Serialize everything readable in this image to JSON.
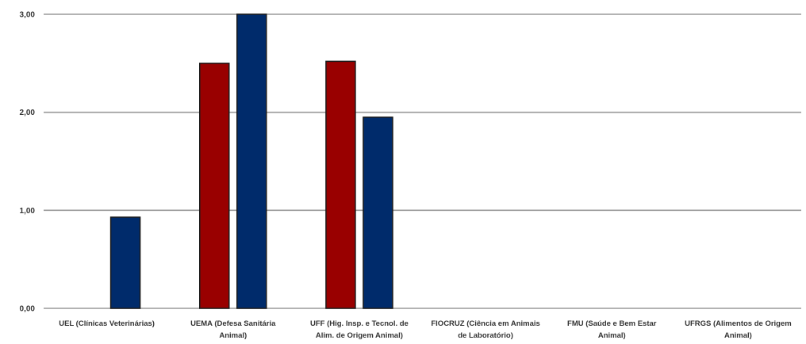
{
  "chart_data": {
    "type": "bar",
    "categories": [
      [
        "UEL (Clínicas Veterinárias)"
      ],
      [
        "UEMA (Defesa Sanitária",
        "Animal)"
      ],
      [
        "UFF (Hig. Insp. e Tecnol. de",
        "Alim. de Origem Animal)"
      ],
      [
        "FIOCRUZ (Ciência em Animais",
        "de Laboratório)"
      ],
      [
        "FMU (Saúde e Bem Estar",
        "Animal)"
      ],
      [
        "UFRGS (Alimentos de Origem",
        "Animal)"
      ]
    ],
    "series": [
      {
        "color": "#990000",
        "values": [
          null,
          2.5,
          2.52,
          null,
          null,
          null
        ]
      },
      {
        "color": "#002b6b",
        "values": [
          0.93,
          3.0,
          1.95,
          null,
          null,
          null
        ]
      }
    ],
    "yticks": [
      "0,00",
      "1,00",
      "2,00",
      "3,00"
    ],
    "ylim": [
      0,
      3
    ],
    "grid": true,
    "legend": "none"
  }
}
